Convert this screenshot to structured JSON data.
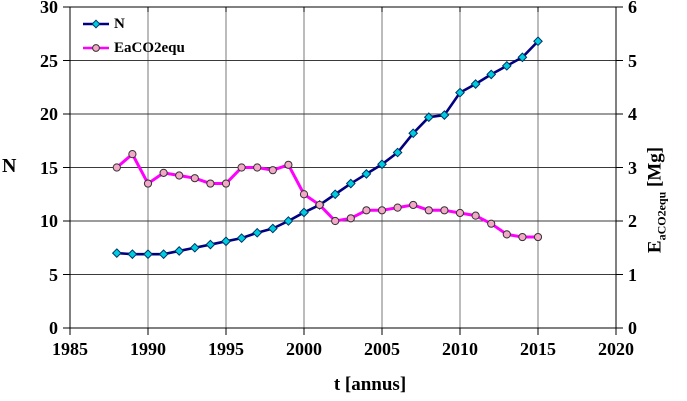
{
  "chart_data": {
    "type": "line",
    "x": [
      1988,
      1989,
      1990,
      1991,
      1992,
      1993,
      1994,
      1995,
      1996,
      1997,
      1998,
      1999,
      2000,
      2001,
      2002,
      2003,
      2004,
      2005,
      2006,
      2007,
      2008,
      2009,
      2010,
      2011,
      2012,
      2013,
      2014,
      2015
    ],
    "series": [
      {
        "name": "N",
        "axis": "left",
        "values": [
          7.0,
          6.9,
          6.9,
          6.9,
          7.2,
          7.5,
          7.8,
          8.1,
          8.4,
          8.9,
          9.3,
          10.0,
          10.8,
          11.5,
          12.5,
          13.5,
          14.4,
          15.3,
          16.4,
          18.2,
          19.7,
          19.9,
          22.0,
          22.8,
          23.7,
          24.5,
          25.3,
          26.8
        ],
        "line_color": "#000080",
        "line_width": 2.6,
        "marker": "diamond",
        "marker_fill": "#00CCE0",
        "marker_stroke": "#003366"
      },
      {
        "name": "EaCO2equ",
        "axis": "right",
        "values": [
          3.0,
          3.25,
          2.7,
          2.9,
          2.85,
          2.8,
          2.7,
          2.7,
          3.0,
          3.0,
          2.95,
          3.05,
          2.5,
          2.3,
          2.0,
          2.05,
          2.2,
          2.2,
          2.25,
          2.3,
          2.2,
          2.2,
          2.15,
          2.1,
          1.95,
          1.75,
          1.7,
          1.7
        ],
        "line_color": "#FF00FF",
        "line_width": 3,
        "marker": "circle",
        "marker_fill": "#F2A8C6",
        "marker_stroke": "#333333"
      }
    ],
    "x_axis": {
      "label": "t [annus]",
      "min": 1985,
      "max": 2020,
      "ticks": [
        1985,
        1990,
        1995,
        2000,
        2005,
        2010,
        2015,
        2020
      ]
    },
    "y_axis_left": {
      "label": "N",
      "min": 0,
      "max": 30,
      "ticks": [
        0,
        5,
        10,
        15,
        20,
        25,
        30
      ]
    },
    "y_axis_right": {
      "label_main": "E",
      "label_sub": "aCO2equ",
      "label_unit": " [Mg]",
      "min": 0,
      "max": 6,
      "ticks": [
        0,
        1,
        2,
        3,
        4,
        5,
        6
      ]
    },
    "grid": true,
    "legend_position": "top-left",
    "style": {
      "frame_color": "#000000",
      "grid_h_color": "#3a3a3a",
      "grid_v_color": "#7a7a7a",
      "background": "#ffffff"
    }
  }
}
